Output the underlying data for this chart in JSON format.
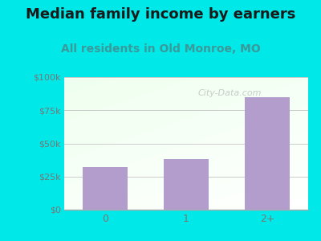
{
  "title": "Median family income by earners",
  "subtitle": "All residents in Old Monroe, MO",
  "categories": [
    "0",
    "1",
    "2+"
  ],
  "values": [
    32000,
    38000,
    85000
  ],
  "bar_color": "#b39dcc",
  "title_color": "#1a1a1a",
  "subtitle_color": "#3a9a9a",
  "outer_bg_color": "#00e8e8",
  "yticks": [
    0,
    25000,
    50000,
    75000,
    100000
  ],
  "ytick_labels": [
    "$0",
    "$25k",
    "$50k",
    "$75k",
    "$100k"
  ],
  "ylim": [
    0,
    100000
  ],
  "watermark": "City-Data.com",
  "title_fontsize": 13,
  "subtitle_fontsize": 10,
  "tick_color": "#777777",
  "grid_color": "#cccccc"
}
